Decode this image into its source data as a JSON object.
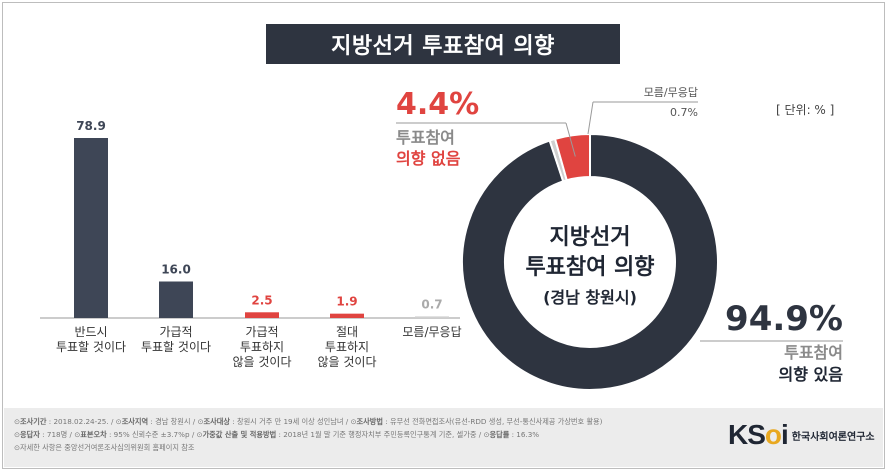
{
  "title": "지방선거 투표참여 의향",
  "unit": "[ 단위: % ]",
  "chart_data": [
    {
      "type": "bar",
      "categories": [
        "반드시\n투표할 것이다",
        "가급적\n투표할 것이다",
        "가급적\n투표하지\n않을 것이다",
        "절대\n투표하지\n않을 것이다",
        "모름/무응답"
      ],
      "values": [
        78.9,
        16.0,
        2.5,
        1.9,
        0.7
      ],
      "value_labels": [
        "78.9",
        "16.0",
        "2.5",
        "1.9",
        "0.7"
      ],
      "colors": [
        "#3e4656",
        "#3e4656",
        "#e04440",
        "#e04440",
        "#cfcfcf"
      ],
      "label_colors": [
        "#3e4656",
        "#3e4656",
        "#e04440",
        "#e04440",
        "#aaaaaa"
      ],
      "ylim": [
        0,
        90
      ]
    },
    {
      "type": "pie",
      "center_lines": [
        "지방선거",
        "투표참여 의향",
        "(경남 창원시)"
      ],
      "slices": [
        {
          "line1": "투표참여",
          "line2": "의향 있음",
          "value": 94.9,
          "value_label": "94.9%",
          "color": "#2e3440"
        },
        {
          "line1": "모름/무응답",
          "line2": "",
          "value": 0.7,
          "value_label": "0.7%",
          "color": "#cfcfcf"
        },
        {
          "line1": "투표참여",
          "line2": "의향 없음",
          "value": 4.4,
          "value_label": "4.4%",
          "color": "#e04440"
        }
      ]
    }
  ],
  "footer": {
    "line1": [
      {
        "k": "조사기간",
        "v": " : 2018.02.24-25."
      },
      {
        "k": "조사지역",
        "v": " : 경남 창원시"
      },
      {
        "k": "조사대상",
        "v": " : 창원시 거주 만 19세 이상 성인남녀"
      },
      {
        "k": "조사방법",
        "v": " : 유무선 전화면접조사(유선-RDD 생성, 무선-통신사제공 가상번호 활용)"
      }
    ],
    "line2": [
      {
        "k": "응답자",
        "v": " : 718명"
      },
      {
        "k": "표본오차",
        "v": " : 95% 신뢰수준 ±3.7%p"
      },
      {
        "k": "가중값 산출 및 적용방법",
        "v": " : 2018년 1월 말 기준 행정자치부 주민등록인구통계 기준, 셀가중"
      },
      {
        "k": "응답률",
        "v": " : 16.3%"
      }
    ],
    "line3": "자세한 사항은 중앙선거여론조사심의위원회 홈페이지 참조"
  },
  "logo": {
    "mark_a": "KS",
    "mark_o": "o",
    "mark_b": "i",
    "text": "한국사회여론연구소"
  }
}
